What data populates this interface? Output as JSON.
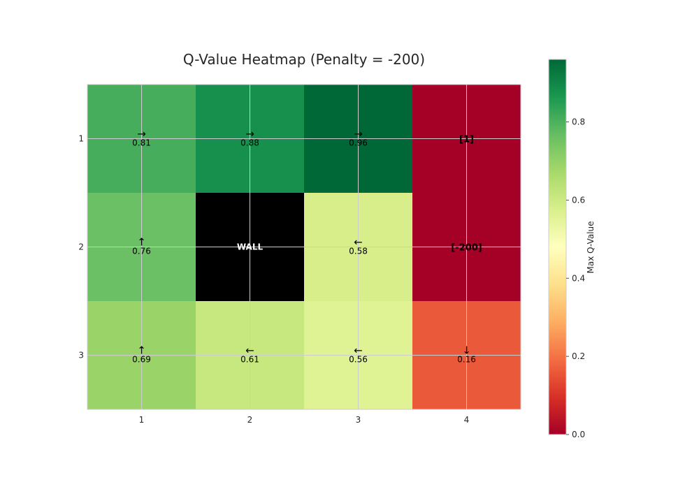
{
  "chart_data": {
    "type": "heatmap",
    "title": "Q-Value Heatmap (Penalty = -200)",
    "x_ticks": [
      "1",
      "2",
      "3",
      "4"
    ],
    "y_ticks": [
      "1",
      "2",
      "3"
    ],
    "grid": true,
    "colormap": "RdYlGn",
    "cells": [
      {
        "row": 1,
        "col": 1,
        "kind": "value",
        "value": 0.81,
        "arrow": "→",
        "label": "0.81"
      },
      {
        "row": 1,
        "col": 2,
        "kind": "value",
        "value": 0.88,
        "arrow": "→",
        "label": "0.88"
      },
      {
        "row": 1,
        "col": 3,
        "kind": "value",
        "value": 0.96,
        "arrow": "→",
        "label": "0.96"
      },
      {
        "row": 1,
        "col": 4,
        "kind": "terminal",
        "value": 0.0,
        "label": "[1]"
      },
      {
        "row": 2,
        "col": 1,
        "kind": "value",
        "value": 0.76,
        "arrow": "↑",
        "label": "0.76"
      },
      {
        "row": 2,
        "col": 2,
        "kind": "wall",
        "label": "WALL"
      },
      {
        "row": 2,
        "col": 3,
        "kind": "value",
        "value": 0.58,
        "arrow": "←",
        "label": "0.58"
      },
      {
        "row": 2,
        "col": 4,
        "kind": "terminal",
        "value": 0.0,
        "label": "[-200]"
      },
      {
        "row": 3,
        "col": 1,
        "kind": "value",
        "value": 0.69,
        "arrow": "↑",
        "label": "0.69"
      },
      {
        "row": 3,
        "col": 2,
        "kind": "value",
        "value": 0.61,
        "arrow": "←",
        "label": "0.61"
      },
      {
        "row": 3,
        "col": 3,
        "kind": "value",
        "value": 0.56,
        "arrow": "←",
        "label": "0.56"
      },
      {
        "row": 3,
        "col": 4,
        "kind": "value",
        "value": 0.16,
        "arrow": "↓",
        "label": "0.16"
      }
    ],
    "colorbar": {
      "label": "Max Q-Value",
      "range": [
        0.0,
        0.96
      ],
      "ticks": [
        0.0,
        0.2,
        0.4,
        0.6,
        0.8
      ],
      "tick_labels": [
        "0.0",
        "0.2",
        "0.4",
        "0.6",
        "0.8"
      ]
    },
    "colors": {
      "wall": "#000000",
      "grid": "#cccccc"
    }
  }
}
